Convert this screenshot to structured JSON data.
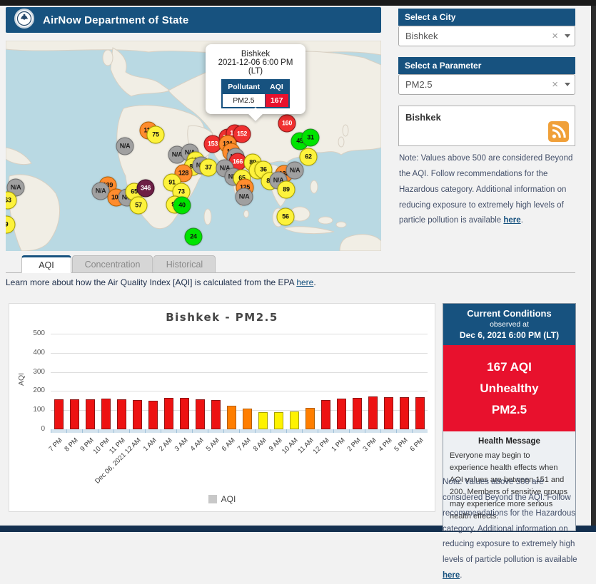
{
  "header": {
    "title": "AirNow Department of State",
    "logo": "us-state-seal"
  },
  "sidebar": {
    "city_label": "Select a City",
    "city_value": "Bishkek",
    "param_label": "Select a Parameter",
    "param_value": "PM2.5",
    "feed_title": "Bishkek",
    "note": "Note: Values above 500 are considered Beyond the AQI. Follow recommendations for the Hazardous category. Additional information on reducing exposure to extremely high levels of particle pollution is available ",
    "note_link": "here",
    "note_end": "."
  },
  "map": {
    "popup": {
      "city": "Bishkek",
      "datetime": "2021-12-06 6:00 PM",
      "tz": "(LT)",
      "col_pollutant": "Pollutant",
      "col_aqi": "AQI",
      "pollutant": "PM2.5",
      "aqi": "167"
    },
    "markers": [
      {
        "v": "N/A",
        "x": 14,
        "y": 206,
        "c": "na"
      },
      {
        "v": "63",
        "x": 3,
        "y": 224,
        "c": "yellow"
      },
      {
        "v": "9",
        "x": 1,
        "y": 258,
        "c": "yellow"
      },
      {
        "v": "N/A",
        "x": 167,
        "y": 148,
        "c": "na"
      },
      {
        "v": "111",
        "x": 200,
        "y": 126,
        "c": "orange"
      },
      {
        "v": "75",
        "x": 210,
        "y": 132,
        "c": "yellow"
      },
      {
        "v": "N/A",
        "x": 240,
        "y": 160,
        "c": "na"
      },
      {
        "v": "N/A",
        "x": 258,
        "y": 157,
        "c": "na"
      },
      {
        "v": "103",
        "x": 266,
        "y": 168,
        "c": "yellow"
      },
      {
        "v": "80",
        "x": 262,
        "y": 177,
        "c": "yellow"
      },
      {
        "v": "N/A",
        "x": 274,
        "y": 175,
        "c": "na"
      },
      {
        "v": "37",
        "x": 284,
        "y": 178,
        "c": "yellow"
      },
      {
        "v": "128",
        "x": 249,
        "y": 186,
        "c": "orange"
      },
      {
        "v": "91",
        "x": 233,
        "y": 199,
        "c": "yellow"
      },
      {
        "v": "73",
        "x": 246,
        "y": 212,
        "c": "yellow"
      },
      {
        "v": "139",
        "x": 143,
        "y": 203,
        "c": "orange"
      },
      {
        "v": "N/A",
        "x": 133,
        "y": 211,
        "c": "na"
      },
      {
        "v": "101",
        "x": 155,
        "y": 220,
        "c": "orange"
      },
      {
        "v": "N/A",
        "x": 170,
        "y": 220,
        "c": "na"
      },
      {
        "v": "65",
        "x": 180,
        "y": 212,
        "c": "yellow"
      },
      {
        "v": "346",
        "x": 196,
        "y": 207,
        "c": "maroon"
      },
      {
        "v": "57",
        "x": 186,
        "y": 231,
        "c": "yellow"
      },
      {
        "v": "97",
        "x": 237,
        "y": 230,
        "c": "yellow"
      },
      {
        "v": "40",
        "x": 247,
        "y": 231,
        "c": "green"
      },
      {
        "v": "24",
        "x": 263,
        "y": 275,
        "c": "green"
      },
      {
        "v": "160",
        "x": 394,
        "y": 116,
        "c": "red"
      },
      {
        "v": "153",
        "x": 290,
        "y": 145,
        "c": "red"
      },
      {
        "v": "163",
        "x": 311,
        "y": 136,
        "c": "red"
      },
      {
        "v": "115",
        "x": 321,
        "y": 130,
        "c": "red"
      },
      {
        "v": "152",
        "x": 331,
        "y": 131,
        "c": "red"
      },
      {
        "v": "121",
        "x": 311,
        "y": 145,
        "c": "orange"
      },
      {
        "v": "111",
        "x": 316,
        "y": 156,
        "c": "orange"
      },
      {
        "v": "N/A",
        "x": 322,
        "y": 163,
        "c": "na"
      },
      {
        "v": "166",
        "x": 325,
        "y": 170,
        "c": "red"
      },
      {
        "v": "89",
        "x": 346,
        "y": 171,
        "c": "yellow"
      },
      {
        "v": "N/A",
        "x": 307,
        "y": 179,
        "c": "na"
      },
      {
        "v": "53",
        "x": 353,
        "y": 182,
        "c": "yellow"
      },
      {
        "v": "36",
        "x": 361,
        "y": 181,
        "c": "yellow"
      },
      {
        "v": "N/A",
        "x": 319,
        "y": 191,
        "c": "na"
      },
      {
        "v": "65",
        "x": 331,
        "y": 193,
        "c": "yellow"
      },
      {
        "v": "125",
        "x": 335,
        "y": 206,
        "c": "orange"
      },
      {
        "v": "N/A",
        "x": 334,
        "y": 219,
        "c": "na"
      },
      {
        "v": "138",
        "x": 390,
        "y": 187,
        "c": "orange"
      },
      {
        "v": "N/A",
        "x": 405,
        "y": 182,
        "c": "na"
      },
      {
        "v": "80",
        "x": 370,
        "y": 197,
        "c": "yellow"
      },
      {
        "v": "N/A",
        "x": 382,
        "y": 196,
        "c": "na"
      },
      {
        "v": "89",
        "x": 393,
        "y": 209,
        "c": "yellow"
      },
      {
        "v": "56",
        "x": 392,
        "y": 247,
        "c": "yellow"
      },
      {
        "v": "45",
        "x": 412,
        "y": 141,
        "c": "green"
      },
      {
        "v": "31",
        "x": 427,
        "y": 136,
        "c": "green"
      },
      {
        "v": "62",
        "x": 424,
        "y": 163,
        "c": "yellow"
      }
    ]
  },
  "tabs": [
    {
      "label": "AQI",
      "active": true
    },
    {
      "label": "Concentration",
      "active": false
    },
    {
      "label": "Historical",
      "active": false
    }
  ],
  "learn_more": {
    "text": "Learn more about how the Air Quality Index [AQI] is calculated from the EPA ",
    "link": "here",
    "end": "."
  },
  "chart_data": {
    "type": "bar",
    "title": "Bishkek - PM2.5",
    "xlabel": "",
    "ylabel": "AQI",
    "ylim": [
      0,
      500
    ],
    "yticks": [
      0,
      100,
      200,
      300,
      400,
      500
    ],
    "grid": true,
    "legend": "AQI",
    "legend_position": "bottom",
    "categories": [
      "7 PM",
      "8 PM",
      "9 PM",
      "10 PM",
      "11 PM",
      "Dec 06, 2021 12 AM",
      "1 AM",
      "2 AM",
      "3 AM",
      "4 AM",
      "5 AM",
      "6 AM",
      "7 AM",
      "8 AM",
      "9 AM",
      "10 AM",
      "11 AM",
      "12 PM",
      "1 PM",
      "2 PM",
      "3 PM",
      "4 PM",
      "5 PM",
      "6 PM"
    ],
    "values": [
      156,
      156,
      158,
      161,
      157,
      153,
      151,
      166,
      163,
      157,
      152,
      125,
      107,
      90,
      90,
      93,
      111,
      152,
      160,
      166,
      171,
      169,
      167,
      167
    ]
  },
  "current": {
    "title": "Current Conditions",
    "observed": "observed at",
    "datetime": "Dec 6, 2021 6:00 PM (LT)",
    "aqi": "167 AQI",
    "category": "Unhealthy",
    "pollutant": "PM2.5",
    "health_title": "Health Message",
    "health_text": "Everyone may begin to experience health effects when AQI values are between 151 and 200. Members of sensitive groups may experience more serious health effects."
  },
  "colors": {
    "navy": "#17527f",
    "alert_red": "#e8112d",
    "aqi_palette": {
      "green": {
        "bg": "#00e400",
        "fg": "#111",
        "stroke": "#1f8f1f"
      },
      "yellow": {
        "bg": "#fdf23c",
        "fg": "#111",
        "stroke": "#a8a000"
      },
      "orange": {
        "bg": "#ff8c2e",
        "fg": "#111",
        "stroke": "#b35f00"
      },
      "red": {
        "bg": "#f03030",
        "fg": "#fff",
        "stroke": "#8f1414"
      },
      "maroon": {
        "bg": "#6d1f45",
        "fg": "#fff",
        "stroke": "#3f0f28"
      },
      "na": {
        "bg": "#a0a0a0",
        "fg": "#222",
        "stroke": "#707070"
      }
    },
    "bar_red": "#ed1212",
    "bar_orange": "#ff7e00",
    "bar_yellow": "#fef200"
  }
}
